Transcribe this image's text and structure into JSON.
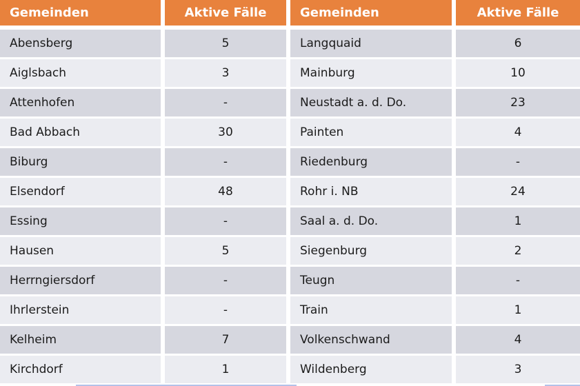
{
  "table": {
    "headers": [
      "Gemeinden",
      "Aktive Fälle",
      "Gemeinden",
      "Aktive Fälle"
    ],
    "rows": [
      {
        "gemeinde_left": "Abensberg",
        "faelle_left": "5",
        "gemeinde_right": "Langquaid",
        "faelle_right": "6"
      },
      {
        "gemeinde_left": "Aiglsbach",
        "faelle_left": "3",
        "gemeinde_right": "Mainburg",
        "faelle_right": "10"
      },
      {
        "gemeinde_left": "Attenhofen",
        "faelle_left": "-",
        "gemeinde_right": "Neustadt a. d. Do.",
        "faelle_right": "23"
      },
      {
        "gemeinde_left": "Bad Abbach",
        "faelle_left": "30",
        "gemeinde_right": "Painten",
        "faelle_right": "4"
      },
      {
        "gemeinde_left": "Biburg",
        "faelle_left": "-",
        "gemeinde_right": "Riedenburg",
        "faelle_right": "-"
      },
      {
        "gemeinde_left": "Elsendorf",
        "faelle_left": "48",
        "gemeinde_right": "Rohr i. NB",
        "faelle_right": "24"
      },
      {
        "gemeinde_left": "Essing",
        "faelle_left": "-",
        "gemeinde_right": "Saal a. d. Do.",
        "faelle_right": "1"
      },
      {
        "gemeinde_left": "Hausen",
        "faelle_left": "5",
        "gemeinde_right": "Siegenburg",
        "faelle_right": "2"
      },
      {
        "gemeinde_left": "Herrngiersdorf",
        "faelle_left": "-",
        "gemeinde_right": "Teugn",
        "faelle_right": "-"
      },
      {
        "gemeinde_left": "Ihrlerstein",
        "faelle_left": "-",
        "gemeinde_right": "Train",
        "faelle_right": "1"
      },
      {
        "gemeinde_left": "Kelheim",
        "faelle_left": "7",
        "gemeinde_right": "Volkenschwand",
        "faelle_right": "4"
      },
      {
        "gemeinde_left": "Kirchdorf",
        "faelle_left": "1",
        "gemeinde_right": "Wildenberg",
        "faelle_right": "3"
      }
    ]
  },
  "colors": {
    "header_bg": "#E8823D",
    "header_text": "#FFFFFF",
    "row_dark": "#D6D7DF",
    "row_light": "#EBECF1",
    "cell_text": "#1B1B1B",
    "accent_blue": "#B3C1E8"
  }
}
